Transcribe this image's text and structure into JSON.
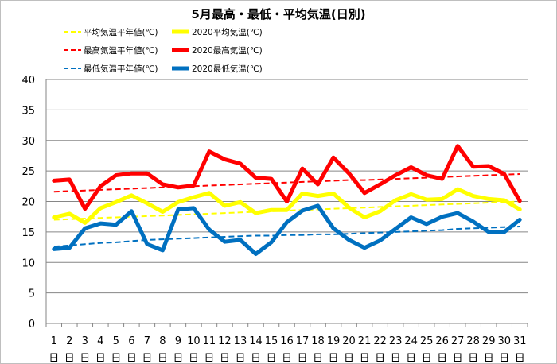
{
  "chart_data": {
    "type": "line",
    "title": "5月最高・最低・平均気温(日別)",
    "xlabel": "",
    "ylabel": "",
    "ylim": [
      0,
      40
    ],
    "yticks": [
      0,
      5,
      10,
      15,
      20,
      25,
      30,
      35,
      40
    ],
    "grid": true,
    "legend_position": "top",
    "categories": [
      "1",
      "2",
      "3",
      "4",
      "5",
      "6",
      "7",
      "8",
      "9",
      "10",
      "11",
      "12",
      "13",
      "14",
      "15",
      "16",
      "17",
      "18",
      "19",
      "20",
      "21",
      "22",
      "23",
      "24",
      "25",
      "26",
      "27",
      "28",
      "29",
      "30",
      "31"
    ],
    "day_suffix": "日",
    "series": [
      {
        "name": "平均気温平年値(℃)",
        "color": "#ffff00",
        "style": "dashed",
        "values": [
          17.0,
          17.1,
          17.2,
          17.3,
          17.4,
          17.5,
          17.6,
          17.7,
          17.8,
          17.9,
          18.0,
          18.1,
          18.2,
          18.3,
          18.4,
          18.5,
          18.6,
          18.7,
          18.8,
          18.9,
          19.0,
          19.1,
          19.2,
          19.3,
          19.4,
          19.5,
          19.6,
          19.7,
          19.8,
          19.9,
          20.0
        ]
      },
      {
        "name": "2020平均気温(℃)",
        "color": "#ffff00",
        "style": "solid",
        "values": [
          17.4,
          18.0,
          16.5,
          18.9,
          19.9,
          21.0,
          19.7,
          18.3,
          19.9,
          20.7,
          21.4,
          19.3,
          19.9,
          18.1,
          18.6,
          18.6,
          21.3,
          20.9,
          21.3,
          19.0,
          17.4,
          18.4,
          20.2,
          21.2,
          20.3,
          20.4,
          22.0,
          20.9,
          20.4,
          20.2,
          18.7
        ]
      },
      {
        "name": "最高気温平年値(℃)",
        "color": "#ff0000",
        "style": "dashed",
        "values": [
          21.6,
          21.7,
          21.8,
          21.9,
          22.0,
          22.1,
          22.2,
          22.3,
          22.4,
          22.5,
          22.6,
          22.7,
          22.8,
          22.9,
          23.0,
          23.1,
          23.2,
          23.3,
          23.4,
          23.5,
          23.5,
          23.6,
          23.7,
          23.8,
          23.9,
          24.0,
          24.1,
          24.2,
          24.3,
          24.4,
          24.5
        ]
      },
      {
        "name": "2020最高気温(℃)",
        "color": "#ff0000",
        "style": "solid",
        "values": [
          23.4,
          23.6,
          18.8,
          22.5,
          24.3,
          24.6,
          24.6,
          22.8,
          22.3,
          22.6,
          28.2,
          26.9,
          26.2,
          23.9,
          23.7,
          20.0,
          25.4,
          22.8,
          27.2,
          24.6,
          21.4,
          22.8,
          24.3,
          25.6,
          24.3,
          23.7,
          29.1,
          25.7,
          25.8,
          24.5,
          20.1
        ]
      },
      {
        "name": "最低気温平年値(℃)",
        "color": "#0070c0",
        "style": "dashed",
        "values": [
          12.6,
          12.8,
          13.0,
          13.2,
          13.3,
          13.5,
          13.7,
          13.8,
          13.9,
          14.0,
          14.1,
          14.2,
          14.3,
          14.4,
          14.4,
          14.5,
          14.5,
          14.6,
          14.6,
          14.7,
          14.8,
          14.9,
          15.0,
          15.1,
          15.2,
          15.3,
          15.5,
          15.6,
          15.7,
          15.8,
          15.9
        ]
      },
      {
        "name": "2020最低気温(℃)",
        "color": "#0070c0",
        "style": "solid",
        "values": [
          12.2,
          12.4,
          15.6,
          16.4,
          16.2,
          18.4,
          13.0,
          12.0,
          18.7,
          18.9,
          15.4,
          13.4,
          13.7,
          11.4,
          13.3,
          16.6,
          18.5,
          19.3,
          15.6,
          13.7,
          12.4,
          13.6,
          15.5,
          17.4,
          16.3,
          17.5,
          18.1,
          16.7,
          15.0,
          15.0,
          17.0
        ]
      }
    ]
  }
}
